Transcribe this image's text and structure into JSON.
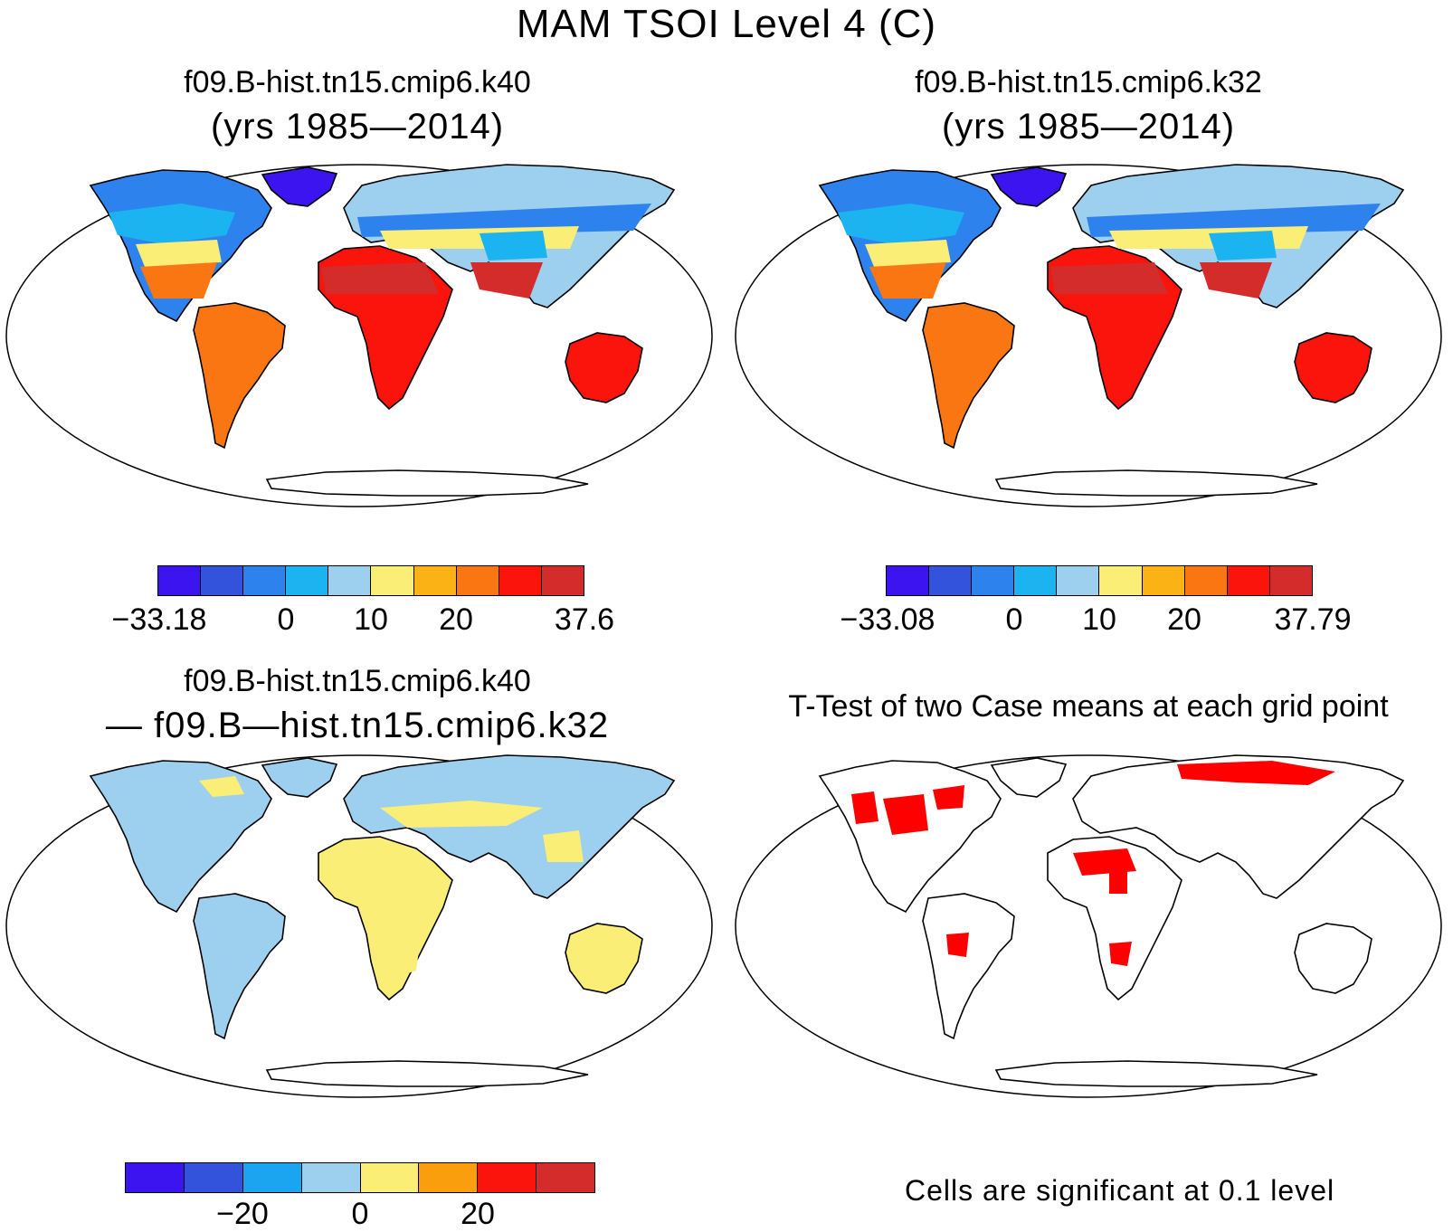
{
  "figure_title": "MAM TSOI Level 4 (C)",
  "colors": {
    "land_scale": [
      "#3b14f0",
      "#3353dc",
      "#2e82ee",
      "#1bb4f0",
      "#9dcfee",
      "#fbee76",
      "#fbb214",
      "#fa7612",
      "#fa140c",
      "#d42b2b"
    ],
    "diff_scale": [
      "#3b14f0",
      "#3353dc",
      "#1ba4f0",
      "#9dcfee",
      "#fbee76",
      "#fb9e0e",
      "#fa140c",
      "#d42b2b"
    ],
    "significant": "#ff0000"
  },
  "panels": {
    "top_left": {
      "case": "f09.B-hist.tn15.cmip6.k40",
      "years": "(yrs 1985—2014)",
      "colorbar_labels": [
        "−33.18",
        "0",
        "10",
        "20",
        "37.6"
      ]
    },
    "top_right": {
      "case": "f09.B-hist.tn15.cmip6.k32",
      "years": "(yrs 1985—2014)",
      "colorbar_labels": [
        "−33.08",
        "0",
        "10",
        "20",
        "37.79"
      ]
    },
    "bottom_left": {
      "case": "f09.B-hist.tn15.cmip6.k40",
      "case2": "— f09.B—hist.tn15.cmip6.k32",
      "colorbar_labels": [
        "−20",
        "0",
        "20"
      ]
    },
    "bottom_right": {
      "title": "T-Test of two Case means at each grid point",
      "note": "Cells are significant at 0.1 level"
    }
  }
}
